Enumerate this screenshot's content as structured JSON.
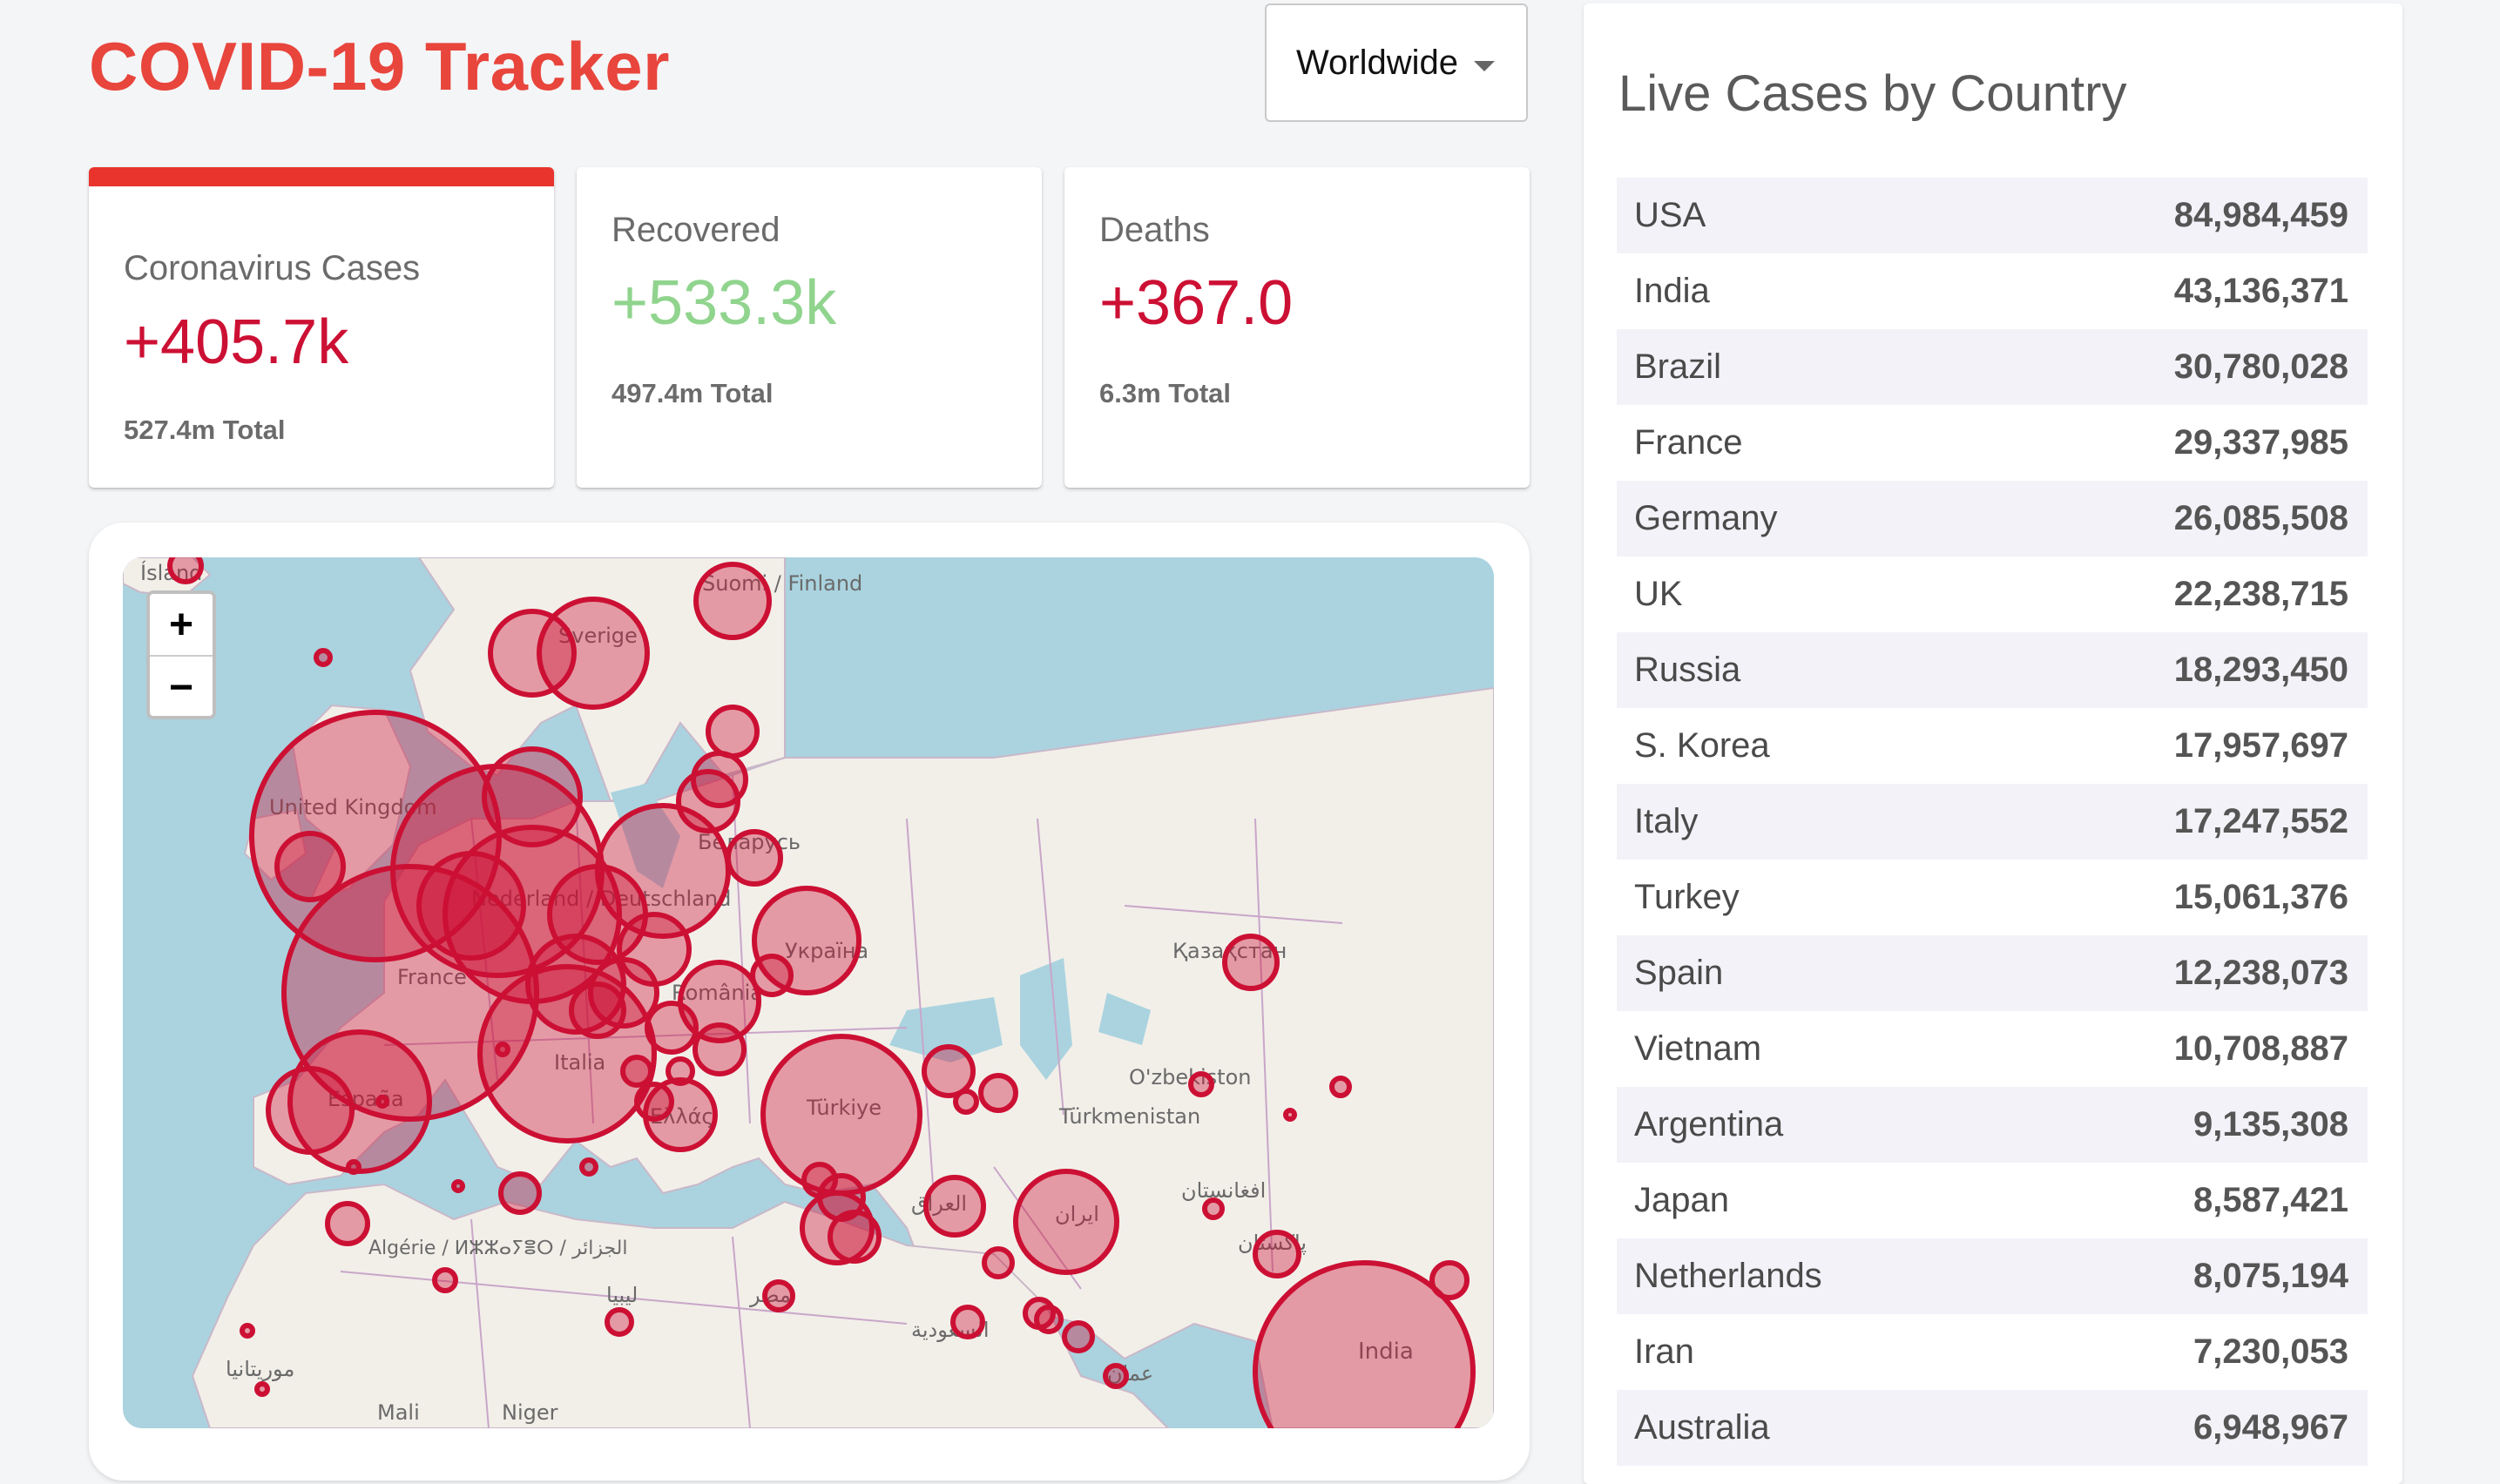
{
  "app": {
    "title": "COVID-19 Tracker"
  },
  "country_select": {
    "selected": "Worldwide"
  },
  "info_cards": [
    {
      "label": "Coronavirus Cases",
      "delta": "+405.7k",
      "total": "527.4m Total",
      "active": true,
      "color": "#cc1034"
    },
    {
      "label": "Recovered",
      "delta": "+533.3k",
      "total": "497.4m Total",
      "active": false,
      "color": "#90d48e"
    },
    {
      "label": "Deaths",
      "delta": "+367.0",
      "total": "6.3m Total",
      "active": false,
      "color": "#cc1034"
    }
  ],
  "map": {
    "zoom_in": "+",
    "zoom_out": "−",
    "labels": [
      "Ísland",
      "Suomi / Finland",
      "Sverige",
      "United Kingdom",
      "Беларусь",
      "Nederland / Deutschland",
      "France",
      "Україна",
      "România",
      "Italia",
      "España",
      "Ελλάς",
      "Türkiye",
      "Қазақстан",
      "O'zbekiston",
      "Türkmenistan",
      "العراق",
      "ایران",
      "افغانستان",
      "پاکستان",
      "Algérie / ⵍⵣⵣⴰⵢⴻⵔ / الجزائر",
      "ليبيا",
      "مصر",
      "السعودية",
      "عمان",
      "موريتانيا",
      "Mali",
      "Niger",
      "India"
    ],
    "circle_color": "#cc1034"
  },
  "table": {
    "title": "Live Cases by Country",
    "rows": [
      {
        "country": "USA",
        "cases": "84,984,459"
      },
      {
        "country": "India",
        "cases": "43,136,371"
      },
      {
        "country": "Brazil",
        "cases": "30,780,028"
      },
      {
        "country": "France",
        "cases": "29,337,985"
      },
      {
        "country": "Germany",
        "cases": "26,085,508"
      },
      {
        "country": "UK",
        "cases": "22,238,715"
      },
      {
        "country": "Russia",
        "cases": "18,293,450"
      },
      {
        "country": "S. Korea",
        "cases": "17,957,697"
      },
      {
        "country": "Italy",
        "cases": "17,247,552"
      },
      {
        "country": "Turkey",
        "cases": "15,061,376"
      },
      {
        "country": "Spain",
        "cases": "12,238,073"
      },
      {
        "country": "Vietnam",
        "cases": "10,708,887"
      },
      {
        "country": "Argentina",
        "cases": "9,135,308"
      },
      {
        "country": "Japan",
        "cases": "8,587,421"
      },
      {
        "country": "Netherlands",
        "cases": "8,075,194"
      },
      {
        "country": "Iran",
        "cases": "7,230,053"
      },
      {
        "country": "Australia",
        "cases": "6,948,967"
      }
    ]
  }
}
